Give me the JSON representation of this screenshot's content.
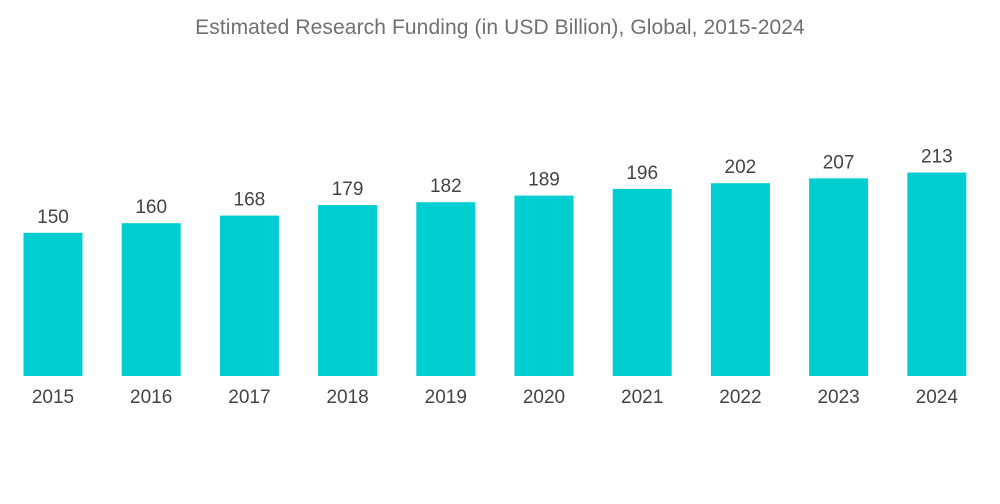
{
  "chart_data": {
    "type": "bar",
    "title": "Estimated Research Funding  (in USD Billion), Global, 2015-2024",
    "xlabel": "",
    "ylabel": "",
    "categories": [
      "2015",
      "2016",
      "2017",
      "2018",
      "2019",
      "2020",
      "2021",
      "2022",
      "2023",
      "2024"
    ],
    "values": [
      150,
      160,
      168,
      179,
      182,
      189,
      196,
      202,
      207,
      213
    ],
    "bar_color": "#00CED1",
    "grid": false,
    "legend": "none",
    "data_labels": true
  }
}
